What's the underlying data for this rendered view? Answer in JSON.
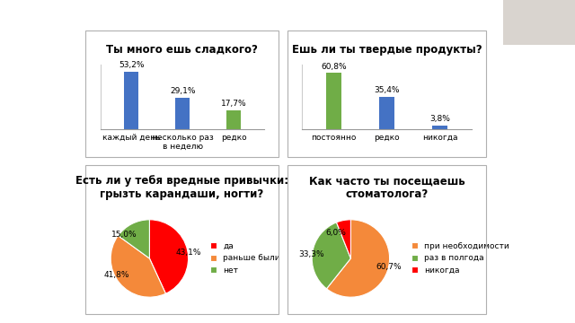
{
  "chart_data": [
    {
      "type": "bar",
      "title": "Ты много ешь сладкого?",
      "categories": [
        "каждый день",
        "несколько раз в неделю",
        "редко"
      ],
      "values": [
        53.2,
        29.1,
        17.7
      ],
      "value_labels": [
        "53,2%",
        "29,1%",
        "17,7%"
      ],
      "colors": [
        "#4472c4",
        "#4472c4",
        "#70ad47"
      ],
      "ylim": [
        0,
        60
      ],
      "data_labels": true,
      "tick_labels": "x",
      "grid": false
    },
    {
      "type": "bar",
      "title": "Ешь ли ты твердые продукты?",
      "categories": [
        "постоянно",
        "редко",
        "никогда"
      ],
      "values": [
        60.8,
        35.4,
        3.8
      ],
      "value_labels": [
        "60,8%",
        "35,4%",
        "3,8%"
      ],
      "colors": [
        "#70ad47",
        "#4472c4",
        "#4472c4"
      ],
      "ylim": [
        0,
        70
      ],
      "data_labels": true,
      "tick_labels": "x",
      "grid": false
    },
    {
      "type": "pie",
      "title": "Есть ли у тебя вредные привычки: грызть карандаши, ногти?",
      "categories": [
        "да",
        "раньше были",
        "нет"
      ],
      "values": [
        43.1,
        41.8,
        15.0
      ],
      "value_labels": [
        "43,1%",
        "41,8%",
        "15,0%"
      ],
      "colors": [
        "#ff0000",
        "#f4893a",
        "#70ad47"
      ],
      "data_labels": true,
      "legend": "right"
    },
    {
      "type": "pie",
      "title": "Как часто ты посещаешь стоматолога?",
      "categories": [
        "при необходимости",
        "раз в полгода",
        "никогда"
      ],
      "values": [
        60.7,
        33.3,
        6.0
      ],
      "value_labels": [
        "60,7%",
        "33,3%",
        "6,0%"
      ],
      "colors": [
        "#f4893a",
        "#70ad47",
        "#ff0000"
      ],
      "data_labels": true,
      "legend": "right"
    }
  ]
}
